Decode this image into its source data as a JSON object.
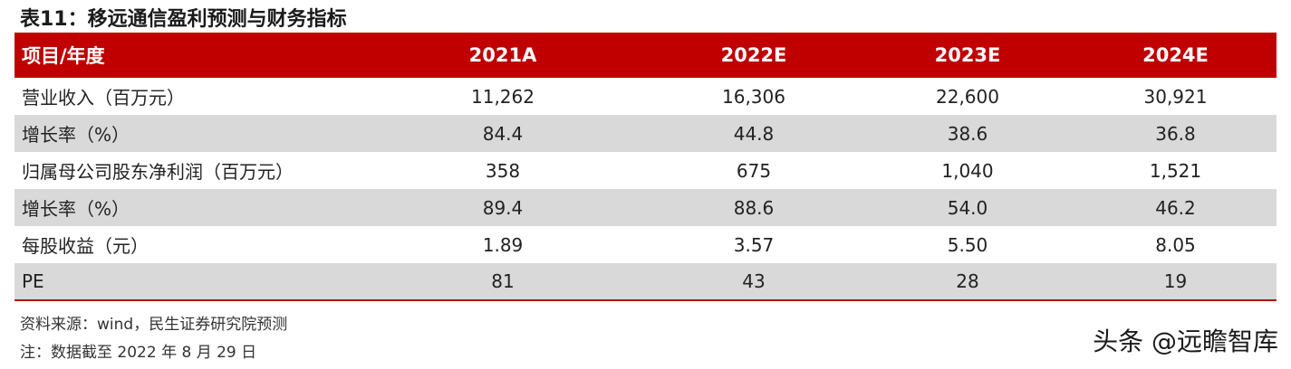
{
  "title": "表11：移远通信盈利预测与财务指标",
  "header": {
    "label": "项目/年度",
    "years": [
      "2021A",
      "2022E",
      "2023E",
      "2024E"
    ]
  },
  "rows": [
    {
      "label": "营业收入（百万元）",
      "values": [
        "11,262",
        "16,306",
        "22,600",
        "30,921"
      ]
    },
    {
      "label": "增长率（%）",
      "values": [
        "84.4",
        "44.8",
        "38.6",
        "36.8"
      ]
    },
    {
      "label": "归属母公司股东净利润（百万元）",
      "values": [
        "358",
        "675",
        "1,040",
        "1,521"
      ]
    },
    {
      "label": "增长率（%）",
      "values": [
        "89.4",
        "88.6",
        "54.0",
        "46.2"
      ]
    },
    {
      "label": "每股收益（元）",
      "values": [
        "1.89",
        "3.57",
        "5.50",
        "8.05"
      ]
    },
    {
      "label": "PE",
      "values": [
        "81",
        "43",
        "28",
        "19"
      ]
    }
  ],
  "notes": {
    "source": "资料来源：wind，民生证券研究院预测",
    "date": "注：数据截至 2022 年 8 月 29 日"
  },
  "watermark": "头条 @远瞻智库",
  "colors": {
    "header_bg": "#c00000",
    "shade_row": "#d9d9d9"
  }
}
